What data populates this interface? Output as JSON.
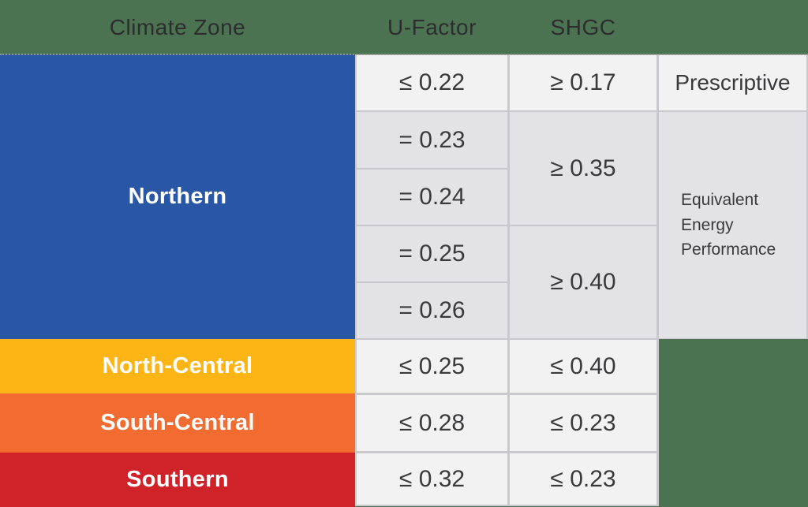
{
  "title": "Climate zone window performance criteria table",
  "colors": {
    "background_green": "#4b7351",
    "northern_blue": "#2a57a5",
    "north_central_yellow": "#fdb415",
    "south_central_orange": "#f26c31",
    "southern_red": "#cf2329",
    "cell_bright": "#f2f2f3",
    "cell_shaded": "#e3e3e5",
    "gridline": "#c9c9cd",
    "header_text": "#2d2d2f",
    "cell_text": "#3a3a3c",
    "zone_label_text": "#ffffff"
  },
  "header": {
    "climate_zone": "Climate Zone",
    "u_factor": "U-Factor",
    "shgc": "SHGC"
  },
  "northern": {
    "label": "Northern",
    "u_factor_rows": [
      "≤ 0.22",
      "= 0.23",
      "= 0.24",
      "= 0.25",
      "= 0.26"
    ],
    "shgc_row1": "≥ 0.17",
    "shgc_rows_2_3": "≥ 0.35",
    "shgc_rows_4_5": "≥ 0.40",
    "compliance_row1": "Prescriptive",
    "compliance_rows_2_5": "Equivalent Energy Performance"
  },
  "zones": [
    {
      "label": "North-Central",
      "u_factor": "≤ 0.25",
      "shgc": "≤ 0.40"
    },
    {
      "label": "South-Central",
      "u_factor": "≤ 0.28",
      "shgc": "≤ 0.23"
    },
    {
      "label": "Southern",
      "u_factor": "≤ 0.32",
      "shgc": "≤ 0.23"
    }
  ],
  "chart_data": {
    "type": "table",
    "columns": [
      "Climate Zone",
      "U-Factor",
      "SHGC",
      ""
    ],
    "rows": [
      [
        "Northern",
        "≤ 0.22",
        "≥ 0.17",
        "Prescriptive"
      ],
      [
        "Northern",
        "= 0.23",
        "≥ 0.35",
        "Equivalent Energy Performance"
      ],
      [
        "Northern",
        "= 0.24",
        "≥ 0.35",
        "Equivalent Energy Performance"
      ],
      [
        "Northern",
        "= 0.25",
        "≥ 0.40",
        "Equivalent Energy Performance"
      ],
      [
        "Northern",
        "= 0.26",
        "≥ 0.40",
        "Equivalent Energy Performance"
      ],
      [
        "North-Central",
        "≤ 0.25",
        "≤ 0.40",
        ""
      ],
      [
        "South-Central",
        "≤ 0.28",
        "≤ 0.23",
        ""
      ],
      [
        "Southern",
        "≤ 0.32",
        "≤ 0.23",
        ""
      ]
    ],
    "merged_cells": [
      {
        "column": "SHGC",
        "value": "≥ 0.35",
        "row_span": [
          "= 0.23",
          "= 0.24"
        ]
      },
      {
        "column": "SHGC",
        "value": "≥ 0.40",
        "row_span": [
          "= 0.25",
          "= 0.26"
        ]
      },
      {
        "column": "",
        "value": "Equivalent Energy Performance",
        "row_span": [
          "= 0.23",
          "= 0.24",
          "= 0.25",
          "= 0.26"
        ]
      }
    ],
    "layout_hints": {
      "fourth_column_header": "none (unlabeled)",
      "fourth_column_exists_only_for": "Northern",
      "zone_column_colored_bands": true
    }
  }
}
